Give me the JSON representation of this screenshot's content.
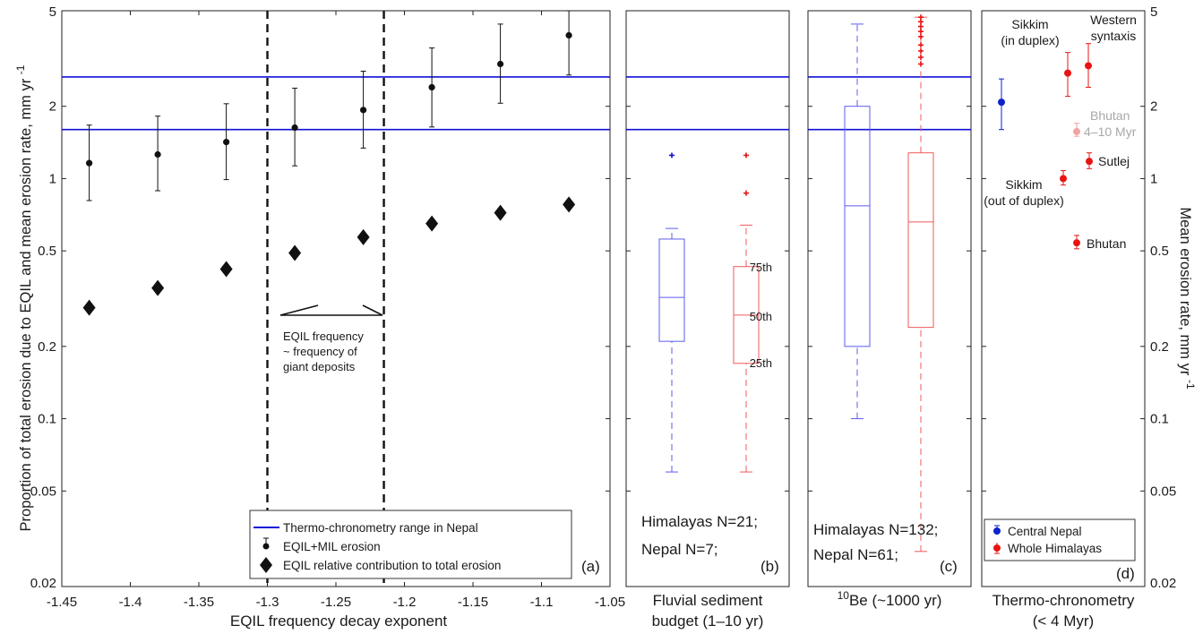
{
  "chart_data": [
    {
      "panel": "(a)",
      "type": "scatter",
      "y_scale": "log",
      "xlim": [
        -1.45,
        -1.05
      ],
      "ylim": [
        0.02,
        5
      ],
      "xlabel": "EQIL frequency decay exponent",
      "ylabel_text": "Proportion of total erosion due to EQIL and mean erosion rate, mm yr",
      "ylabel_sup": "-1",
      "x_ticks": [
        "-1.45",
        "-1.4",
        "-1.35",
        "-1.3",
        "-1.25",
        "-1.2",
        "-1.15",
        "-1.1",
        "-1.05"
      ],
      "y_ticks": [
        "0.02",
        "0.05",
        "0.1",
        "0.2",
        "0.5",
        "1",
        "2",
        "5"
      ],
      "thermo_lines": [
        1.6,
        2.65
      ],
      "vlines": [
        -1.3,
        -1.215
      ],
      "series": [
        {
          "name": "EQIL+MIL erosion",
          "x": [
            -1.43,
            -1.38,
            -1.33,
            -1.28,
            -1.23,
            -1.18,
            -1.13,
            -1.08
          ],
          "y": [
            1.16,
            1.26,
            1.42,
            1.63,
            1.93,
            2.4,
            3.0,
            3.95
          ],
          "err_low": [
            0.81,
            0.89,
            0.99,
            1.13,
            1.34,
            1.64,
            2.06,
            2.7
          ],
          "err_high": [
            1.67,
            1.82,
            2.05,
            2.38,
            2.8,
            3.5,
            4.4,
            5.0
          ]
        },
        {
          "name": "EQIL relative contribution to total erosion",
          "x": [
            -1.43,
            -1.38,
            -1.33,
            -1.28,
            -1.23,
            -1.18,
            -1.13,
            -1.08
          ],
          "y": [
            0.29,
            0.35,
            0.42,
            0.49,
            0.57,
            0.65,
            0.72,
            0.78
          ]
        }
      ],
      "legend": [
        "Thermo-chronometry range in Nepal",
        "EQIL+MIL erosion",
        "EQIL relative contribution to total erosion"
      ],
      "annotation": [
        "EQIL frequency",
        "~  frequency of",
        "giant deposits"
      ],
      "label": "(a)"
    },
    {
      "panel": "(b)",
      "type": "box",
      "xlabel": [
        "Fluvial sediment",
        "budget (1–10 yr)"
      ],
      "boxes": [
        {
          "group": "Himalayas",
          "q1": 0.21,
          "median": 0.32,
          "q3": 0.56,
          "whisker_low": 0.06,
          "whisker_high": 0.62,
          "outliers": [
            1.25
          ]
        },
        {
          "group": "Nepal",
          "q1": 0.17,
          "median": 0.27,
          "q3": 0.43,
          "whisker_low": 0.06,
          "whisker_high": 0.64,
          "outliers": [
            1.25,
            0.87
          ]
        }
      ],
      "percentile_labels": [
        "75th",
        "50th",
        "25th"
      ],
      "text": [
        "Himalayas N=21;",
        "Nepal N=7;"
      ],
      "label": "(b)"
    },
    {
      "panel": "(c)",
      "type": "box",
      "xlabel_sup": "10",
      "xlabel_rest": "Be (~1000 yr)",
      "boxes": [
        {
          "group": "Himalayas",
          "q1": 0.2,
          "median": 0.77,
          "q3": 2.0,
          "whisker_low": 0.1,
          "whisker_high": 4.4,
          "outliers": []
        },
        {
          "group": "Nepal",
          "q1": 0.24,
          "median": 0.66,
          "q3": 1.28,
          "whisker_low": 0.028,
          "whisker_high": 4.7,
          "outliers": [
            4.7,
            4.5,
            4.3,
            4.1,
            3.9,
            3.6,
            3.4,
            3.2,
            3.0
          ]
        }
      ],
      "text": [
        "Himalayas N=132;",
        "Nepal N=61;"
      ],
      "label": "(c)"
    },
    {
      "panel": "(d)",
      "type": "scatter",
      "xlabel": [
        "Thermo-chronometry",
        "(< 4 Myr)"
      ],
      "ylabel_text": "Mean erosion rate, mm yr",
      "ylabel_sup": "-1",
      "y_ticks": [
        "0.02",
        "0.05",
        "0.1",
        "0.2",
        "0.5",
        "1",
        "2",
        "5"
      ],
      "points": [
        {
          "group": "Central Nepal",
          "label": "Central Nepal",
          "y": 2.08,
          "low": 1.6,
          "high": 2.6
        },
        {
          "group": "Whole Himalayas",
          "label": "Sikkim (in duplex)",
          "y": 2.75,
          "low": 2.2,
          "high": 3.35
        },
        {
          "group": "Whole Himalayas",
          "label": "Western syntaxis",
          "y": 2.95,
          "low": 2.4,
          "high": 3.65
        },
        {
          "group": "Whole Himalayas (faded)",
          "label": "Bhutan 4–10 Myr",
          "y": 1.57,
          "low": 1.5,
          "high": 1.7
        },
        {
          "group": "Whole Himalayas",
          "label": "Sutlej",
          "y": 1.18,
          "low": 1.1,
          "high": 1.28
        },
        {
          "group": "Whole Himalayas",
          "label": "Sikkim (out of duplex)",
          "y": 1.0,
          "low": 0.94,
          "high": 1.08
        },
        {
          "group": "Whole Himalayas",
          "label": "Bhutan",
          "y": 0.54,
          "low": 0.51,
          "high": 0.58
        }
      ],
      "annotations": {
        "sikkim_in": [
          "Sikkim",
          "(in duplex)"
        ],
        "western": [
          "Western",
          "syntaxis"
        ],
        "bhutan_old": [
          "Bhutan",
          "4–10 Myr"
        ],
        "sutlej": "Sutlej",
        "sikkim_out": [
          "Sikkim",
          "(out of duplex)"
        ],
        "bhutan": "Bhutan"
      },
      "legend": [
        "Central Nepal",
        "Whole Himalayas"
      ],
      "colors": {
        "central": "#0b22cc",
        "whole": "#e81414",
        "faded": "#f3a3a3"
      },
      "label": "(d)"
    }
  ],
  "colors": {
    "blue": "#1010d8",
    "blue_box": "#5b5bf0",
    "red_box": "#ef5a5a",
    "red": "#e81414",
    "black": "#111111"
  }
}
